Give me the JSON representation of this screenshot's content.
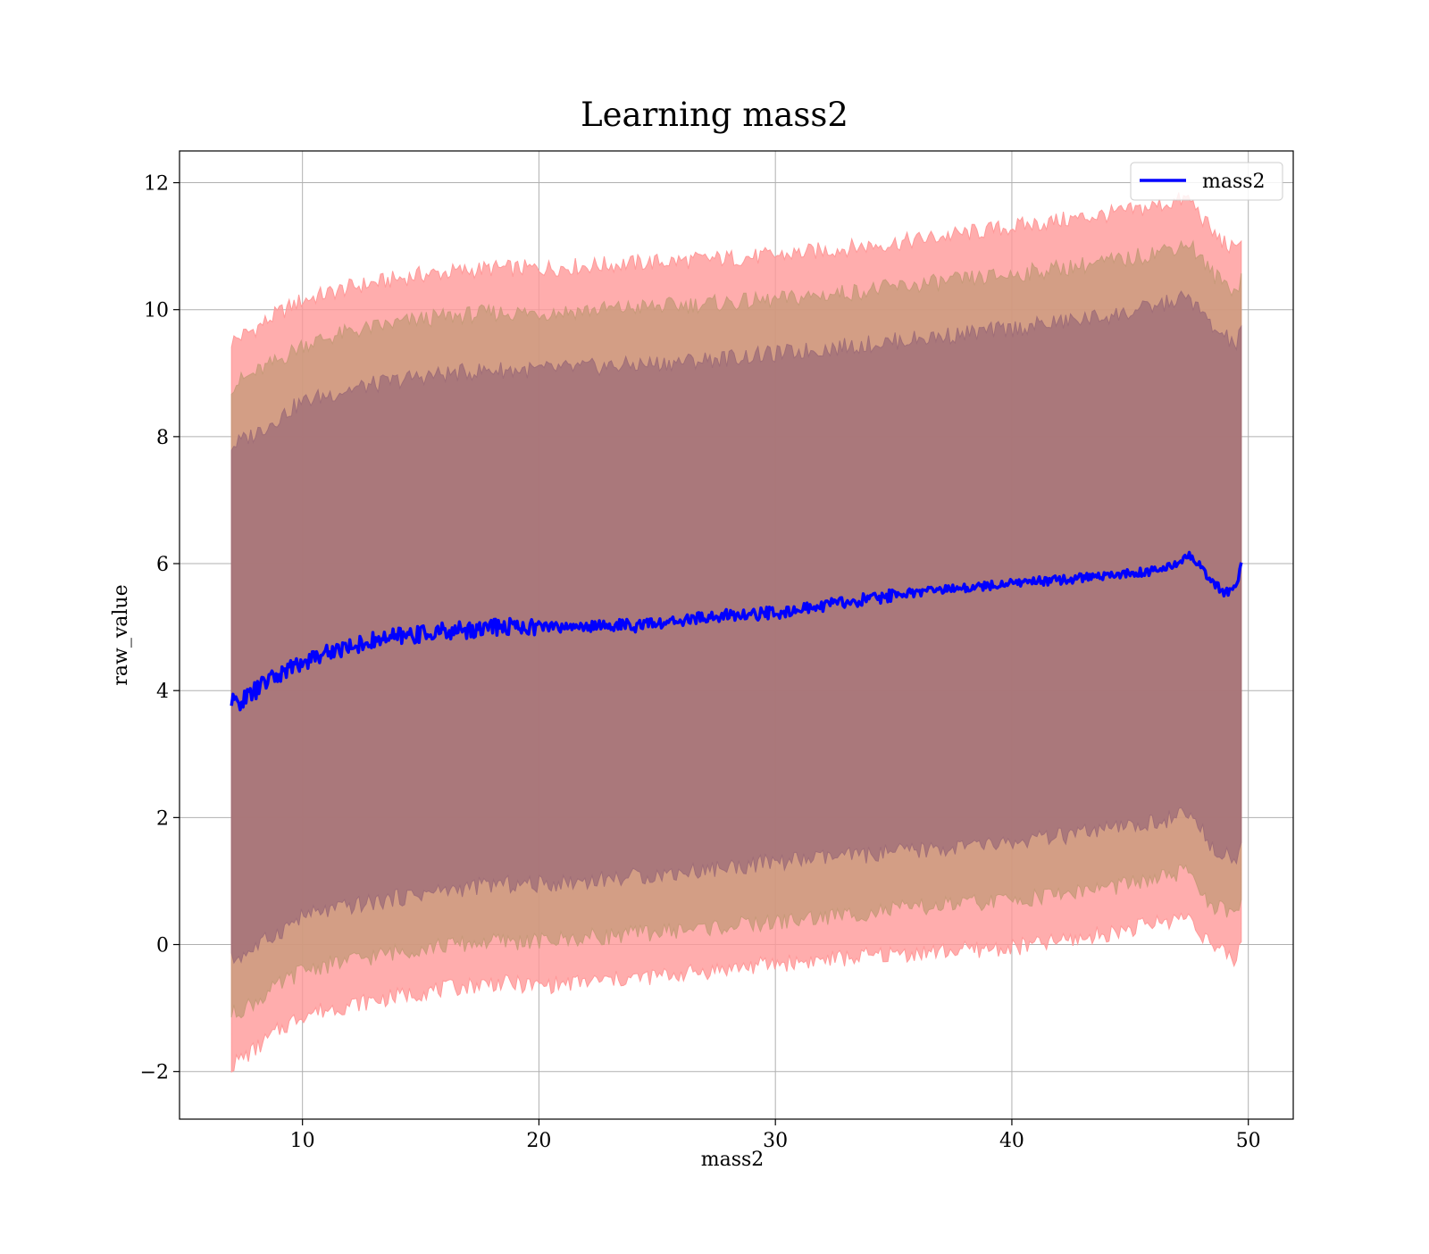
{
  "chart_data": {
    "type": "line",
    "title": "Learning mass2",
    "xlabel": "mass2",
    "ylabel": "raw_value",
    "xlim": [
      4.8,
      51.9
    ],
    "ylim": [
      -2.75,
      12.5
    ],
    "xticks": [
      10,
      20,
      30,
      40,
      50
    ],
    "yticks": [
      -2,
      0,
      2,
      4,
      6,
      8,
      10,
      12
    ],
    "xtick_labels": [
      "10",
      "20",
      "30",
      "40",
      "50"
    ],
    "ytick_labels": [
      "−2",
      "0",
      "2",
      "4",
      "6",
      "8",
      "10",
      "12"
    ],
    "grid": true,
    "legend": {
      "position": "top-right",
      "entries": [
        "mass2"
      ]
    },
    "series": [
      {
        "name": "mass2",
        "color": "#0000ff",
        "x": [
          7.0,
          7.5,
          8.0,
          8.5,
          9.0,
          9.5,
          10.0,
          11.0,
          12.0,
          13.0,
          14.0,
          15.0,
          16.0,
          17.0,
          18.0,
          19.0,
          20.0,
          21.0,
          22.0,
          23.0,
          24.0,
          25.0,
          26.0,
          27.0,
          28.0,
          29.0,
          30.0,
          31.0,
          32.0,
          33.0,
          34.0,
          35.0,
          36.0,
          37.0,
          38.0,
          39.0,
          40.0,
          41.0,
          42.0,
          43.0,
          44.0,
          45.0,
          46.0,
          47.0,
          47.5,
          48.0,
          48.5,
          49.0,
          49.5,
          49.7
        ],
        "y": [
          3.8,
          3.85,
          4.0,
          4.15,
          4.25,
          4.35,
          4.45,
          4.6,
          4.7,
          4.78,
          4.85,
          4.9,
          4.93,
          4.96,
          5.0,
          5.02,
          5.0,
          5.0,
          5.02,
          5.03,
          5.02,
          5.05,
          5.1,
          5.15,
          5.18,
          5.2,
          5.23,
          5.28,
          5.33,
          5.4,
          5.45,
          5.5,
          5.55,
          5.58,
          5.62,
          5.65,
          5.7,
          5.72,
          5.74,
          5.78,
          5.82,
          5.85,
          5.88,
          6.0,
          6.15,
          5.95,
          5.7,
          5.55,
          5.6,
          6.0
        ]
      }
    ],
    "bands": [
      {
        "color": "#ff9999",
        "x": [
          7.0,
          8.0,
          9.0,
          10.0,
          12.0,
          15.0,
          18.0,
          20.0,
          25.0,
          30.0,
          35.0,
          40.0,
          43.0,
          45.0,
          47.5,
          48.5,
          49.5,
          49.7
        ],
        "upper": [
          9.5,
          9.7,
          9.95,
          10.15,
          10.35,
          10.55,
          10.65,
          10.65,
          10.75,
          10.85,
          11.05,
          11.3,
          11.45,
          11.55,
          11.75,
          11.2,
          10.9,
          11.2
        ],
        "lower": [
          -1.9,
          -1.65,
          -1.35,
          -1.1,
          -0.95,
          -0.75,
          -0.6,
          -0.65,
          -0.5,
          -0.3,
          -0.15,
          -0.05,
          0.1,
          0.25,
          0.45,
          -0.05,
          -0.25,
          0.1
        ]
      },
      {
        "color": "#c89a7a",
        "x": [
          7.0,
          8.0,
          9.0,
          10.0,
          12.0,
          15.0,
          18.0,
          20.0,
          25.0,
          30.0,
          35.0,
          40.0,
          43.0,
          45.0,
          47.5,
          48.5,
          49.5,
          49.7
        ],
        "upper": [
          8.8,
          9.0,
          9.2,
          9.45,
          9.65,
          9.85,
          9.95,
          9.95,
          10.05,
          10.15,
          10.35,
          10.55,
          10.7,
          10.8,
          11.05,
          10.55,
          10.3,
          10.5
        ],
        "lower": [
          -1.1,
          -0.9,
          -0.65,
          -0.4,
          -0.25,
          -0.05,
          0.05,
          0.05,
          0.2,
          0.35,
          0.55,
          0.7,
          0.85,
          0.95,
          1.15,
          0.6,
          0.45,
          0.7
        ]
      },
      {
        "color": "#a06e78",
        "x": [
          7.0,
          8.0,
          9.0,
          10.0,
          12.0,
          15.0,
          18.0,
          20.0,
          25.0,
          30.0,
          35.0,
          40.0,
          43.0,
          45.0,
          47.5,
          48.5,
          49.5,
          49.7
        ],
        "upper": [
          7.85,
          8.05,
          8.3,
          8.55,
          8.75,
          8.95,
          9.05,
          9.05,
          9.15,
          9.3,
          9.5,
          9.7,
          9.85,
          9.95,
          10.2,
          9.7,
          9.45,
          9.65
        ],
        "lower": [
          -0.25,
          -0.05,
          0.2,
          0.45,
          0.6,
          0.8,
          0.95,
          0.95,
          1.1,
          1.3,
          1.45,
          1.6,
          1.75,
          1.85,
          2.05,
          1.55,
          1.35,
          1.6
        ]
      }
    ]
  }
}
